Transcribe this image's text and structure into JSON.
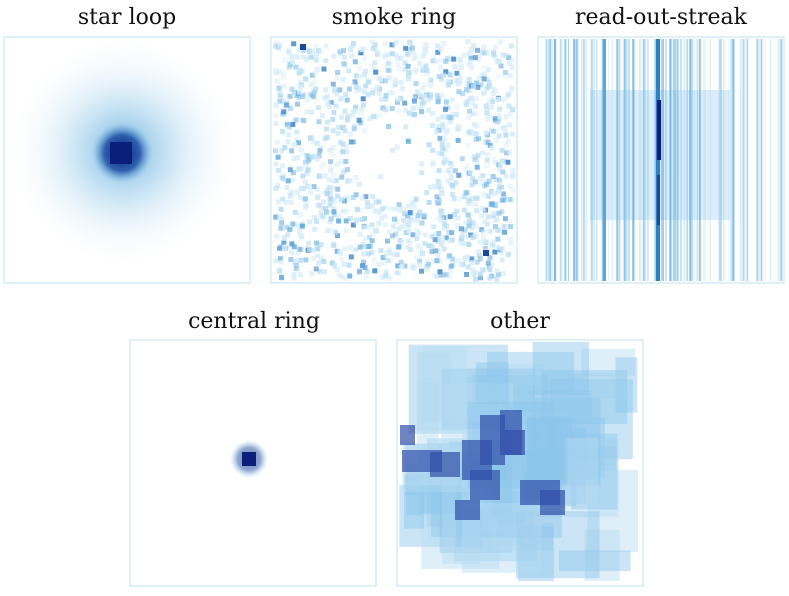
{
  "panels": [
    {
      "title": "star loop"
    },
    {
      "title": "smoke ring"
    },
    {
      "title": "read-out-streak"
    },
    {
      "title": "central ring"
    },
    {
      "title": "other"
    }
  ]
}
